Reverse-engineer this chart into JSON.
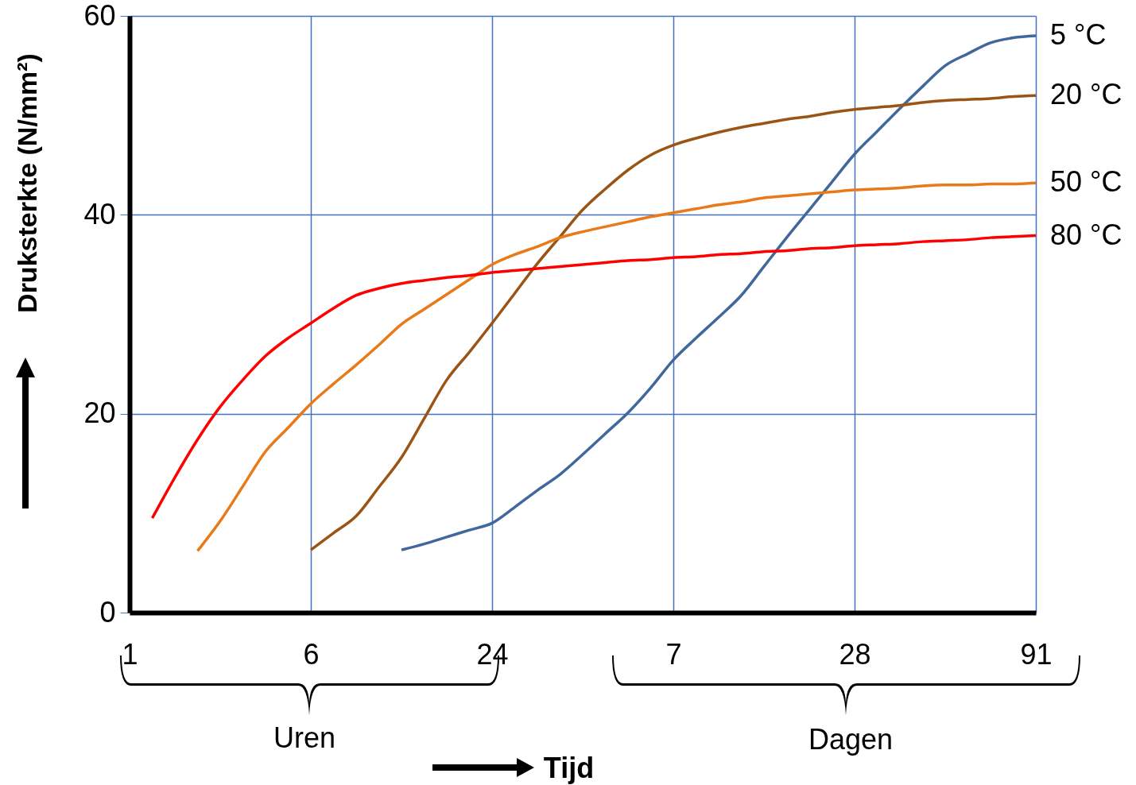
{
  "chart_data": {
    "type": "line",
    "xlabel": "Tijd",
    "ylabel": "Druksterkte (N/mm²)",
    "categories": [
      "1",
      null,
      null,
      null,
      null,
      null,
      null,
      null,
      "6",
      null,
      null,
      null,
      null,
      null,
      null,
      null,
      "24",
      null,
      null,
      null,
      null,
      null,
      null,
      null,
      "7",
      null,
      null,
      null,
      null,
      null,
      null,
      null,
      "28",
      null,
      null,
      null,
      null,
      null,
      null,
      null,
      "91"
    ],
    "ylim": [
      0,
      60
    ],
    "yticks": [
      0,
      20,
      40,
      60
    ],
    "grid": true,
    "marker": "none",
    "line_style": "solid",
    "series": [
      {
        "name": "5 °C",
        "color": "#41689c",
        "values": [
          null,
          null,
          null,
          null,
          null,
          null,
          null,
          null,
          null,
          null,
          null,
          null,
          6.3,
          6.9,
          7.6,
          8.3,
          9.0,
          10.6,
          12.3,
          13.9,
          15.9,
          18.0,
          20.1,
          22.6,
          25.4,
          27.6,
          29.7,
          31.9,
          34.8,
          37.7,
          40.5,
          43.3,
          46.1,
          48.4,
          50.7,
          52.9,
          55.0,
          56.2,
          57.3,
          57.8,
          58
        ]
      },
      {
        "name": "20 °C",
        "color": "#9a5516",
        "values": [
          null,
          null,
          null,
          null,
          null,
          null,
          null,
          null,
          6.3,
          8.0,
          9.7,
          12.6,
          15.6,
          19.5,
          23.4,
          26.2,
          29.1,
          32.1,
          35.1,
          37.8,
          40.5,
          42.6,
          44.5,
          46.0,
          47,
          47.7,
          48.3,
          48.8,
          49.2,
          49.6,
          49.9,
          50.3,
          50.6,
          50.8,
          51.0,
          51.3,
          51.5,
          51.6,
          51.7,
          51.9,
          52.0
        ]
      },
      {
        "name": "50 °C",
        "color": "#e87a1a",
        "values": [
          null,
          null,
          null,
          6.2,
          9.2,
          12.7,
          16.2,
          18.6,
          21,
          23,
          24.9,
          26.9,
          29,
          30.5,
          32.0,
          33.5,
          35,
          36,
          36.8,
          37.7,
          38.3,
          38.8,
          39.3,
          39.8,
          40.2,
          40.6,
          41.0,
          41.3,
          41.7,
          41.9,
          42.1,
          42.3,
          42.5,
          42.6,
          42.7,
          42.9,
          43.0,
          43.0,
          43.1,
          43.1,
          43.2
        ]
      },
      {
        "name": "80 °C",
        "color": "#ff0000",
        "values": [
          null,
          9.5,
          13.6,
          17.4,
          20.7,
          23.4,
          25.8,
          27.6,
          29.1,
          30.6,
          31.9,
          32.6,
          33.1,
          33.4,
          33.7,
          33.9,
          34.2,
          34.4,
          34.6,
          34.8,
          35.0,
          35.2,
          35.4,
          35.5,
          35.7,
          35.8,
          36.0,
          36.1,
          36.3,
          36.4,
          36.6,
          36.7,
          36.9,
          37.0,
          37.1,
          37.3,
          37.4,
          37.5,
          37.7,
          37.8,
          37.9
        ]
      }
    ],
    "annotations": [
      "Uren",
      "Dagen"
    ]
  }
}
